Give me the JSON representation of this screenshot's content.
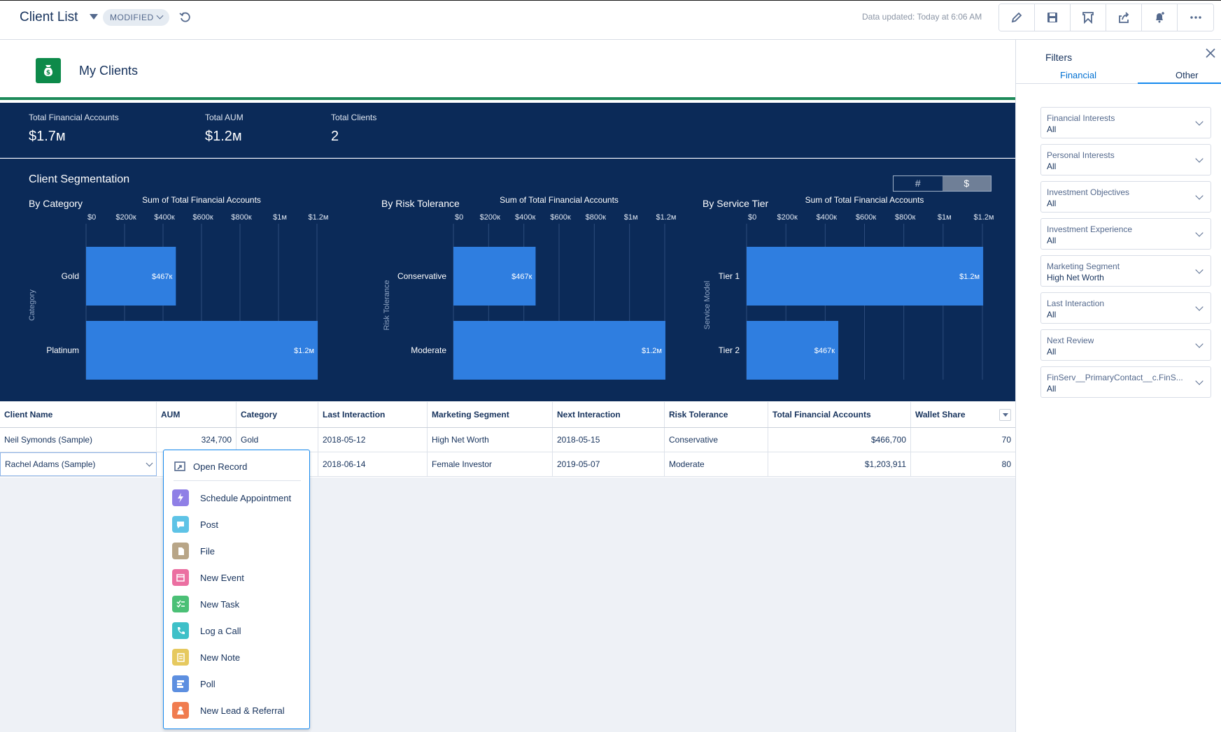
{
  "header": {
    "title": "Client List",
    "modified_label": "MODIFIED",
    "data_updated": "Data updated: Today at 6:06 AM",
    "toolbar_icons": [
      "pencil-icon",
      "save-icon",
      "subscribe-icon",
      "share-icon",
      "notification-icon",
      "more-icon"
    ]
  },
  "dashboard": {
    "title": "My Clients",
    "kpis": [
      {
        "label": "Total Financial Accounts",
        "value": "$1.7м"
      },
      {
        "label": "Total AUM",
        "value": "$1.2м"
      },
      {
        "label": "Total Clients",
        "value": "2"
      }
    ],
    "segmentation_title": "Client Segmentation",
    "toggle": {
      "count_label": "#",
      "amount_label": "$",
      "selected": "$"
    }
  },
  "chart_data": [
    {
      "type": "bar",
      "orientation": "horizontal",
      "title": "By Category",
      "xlabel": "Sum of Total Financial Accounts",
      "ylabel": "Category",
      "categories": [
        "Gold",
        "Platinum"
      ],
      "values": [
        466700,
        1203911
      ],
      "data_labels": [
        "$467к",
        "$1.2м"
      ],
      "x_ticks": [
        0,
        200000,
        400000,
        600000,
        800000,
        1000000,
        1200000
      ],
      "x_tick_labels": [
        "$0",
        "$200к",
        "$400к",
        "$600к",
        "$800к",
        "$1м",
        "$1.2м"
      ],
      "xlim": [
        0,
        1200000
      ],
      "grid": true,
      "color": "#2f7ee0"
    },
    {
      "type": "bar",
      "orientation": "horizontal",
      "title": "By Risk Tolerance",
      "xlabel": "Sum of Total Financial Accounts",
      "ylabel": "Risk Tolerance",
      "categories": [
        "Conservative",
        "Moderate"
      ],
      "values": [
        466700,
        1203911
      ],
      "data_labels": [
        "$467к",
        "$1.2м"
      ],
      "x_ticks": [
        0,
        200000,
        400000,
        600000,
        800000,
        1000000,
        1200000
      ],
      "x_tick_labels": [
        "$0",
        "$200к",
        "$400к",
        "$600к",
        "$800к",
        "$1м",
        "$1.2м"
      ],
      "xlim": [
        0,
        1200000
      ],
      "grid": true,
      "color": "#2f7ee0"
    },
    {
      "type": "bar",
      "orientation": "horizontal",
      "title": "By Service Tier",
      "xlabel": "Sum of Total Financial Accounts",
      "ylabel": "Service Model",
      "categories": [
        "Tier 1",
        "Tier 2"
      ],
      "values": [
        1203911,
        466700
      ],
      "data_labels": [
        "$1.2м",
        "$467к"
      ],
      "x_ticks": [
        0,
        200000,
        400000,
        600000,
        800000,
        1000000,
        1200000
      ],
      "x_tick_labels": [
        "$0",
        "$200к",
        "$400к",
        "$600к",
        "$800к",
        "$1м",
        "$1.2м"
      ],
      "xlim": [
        0,
        1200000
      ],
      "grid": true,
      "color": "#2f7ee0"
    }
  ],
  "table": {
    "columns": [
      "Client Name",
      "AUM",
      "Category",
      "Last Interaction",
      "Marketing Segment",
      "Next Interaction",
      "Risk Tolerance",
      "Total Financial Accounts",
      "Wallet Share"
    ],
    "rows": [
      [
        "Neil Symonds (Sample)",
        "324,700",
        "Gold",
        "2018-05-12",
        "High Net Worth",
        "2018-05-15",
        "Conservative",
        "$466,700",
        "70"
      ],
      [
        "Rachel Adams (Sample)",
        "",
        "",
        "2018-06-14",
        "Female Investor",
        "2019-05-07",
        "Moderate",
        "$1,203,911",
        "80"
      ]
    ]
  },
  "row_menu": {
    "open_record": "Open Record",
    "items": [
      {
        "label": "Schedule Appointment",
        "icon": "lightning-icon",
        "color": "#8f7fe6"
      },
      {
        "label": "Post",
        "icon": "post-icon",
        "color": "#5ec3e6"
      },
      {
        "label": "File",
        "icon": "file-icon",
        "color": "#b8a587"
      },
      {
        "label": "New Event",
        "icon": "calendar-icon",
        "color": "#eb6fa1"
      },
      {
        "label": "New Task",
        "icon": "task-icon",
        "color": "#4bc076"
      },
      {
        "label": "Log a Call",
        "icon": "call-icon",
        "color": "#3ec0c8"
      },
      {
        "label": "New Note",
        "icon": "note-icon",
        "color": "#e6c95f"
      },
      {
        "label": "Poll",
        "icon": "poll-icon",
        "color": "#5d8fe0"
      },
      {
        "label": "New Lead & Referral",
        "icon": "lead-icon",
        "color": "#f07c4f"
      }
    ]
  },
  "filters": {
    "title": "Filters",
    "tabs": [
      "Financial",
      "Other"
    ],
    "active_tab": "Other",
    "items": [
      {
        "label": "Financial Interests",
        "value": "All"
      },
      {
        "label": "Personal Interests",
        "value": "All"
      },
      {
        "label": "Investment Objectives",
        "value": "All"
      },
      {
        "label": "Investment Experience",
        "value": "All"
      },
      {
        "label": "Marketing Segment",
        "value": "High Net Worth"
      },
      {
        "label": "Last Interaction",
        "value": "All"
      },
      {
        "label": "Next Review",
        "value": "All"
      },
      {
        "label": "FinServ__PrimaryContact__c.FinS...",
        "value": "All"
      }
    ]
  }
}
